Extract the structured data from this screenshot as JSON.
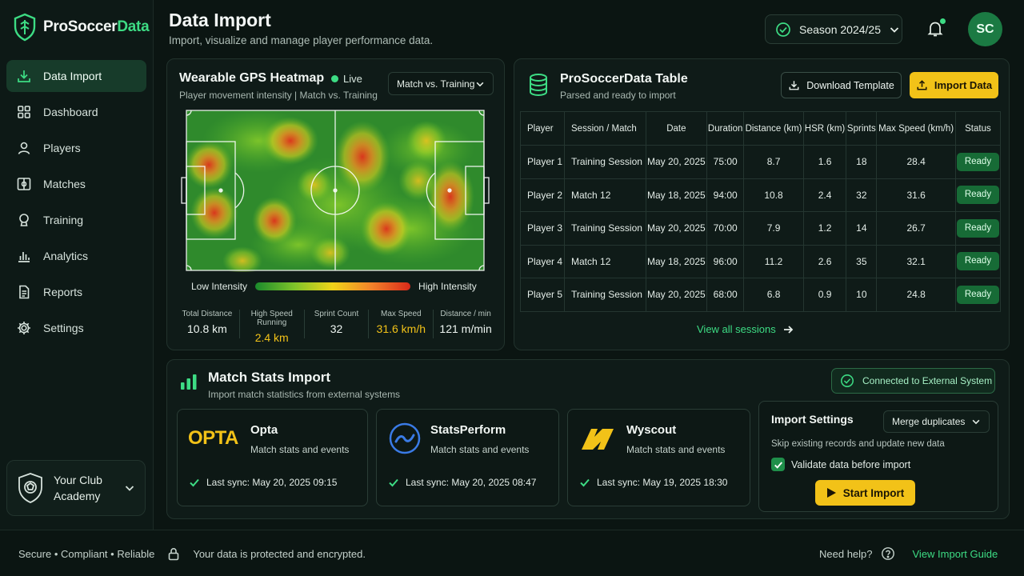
{
  "brand": {
    "name_main": "ProSoccer",
    "name_accent": "Data"
  },
  "sidebar": {
    "items": [
      {
        "label": "Data Import",
        "icon": "download-icon"
      },
      {
        "label": "Dashboard",
        "icon": "grid-icon"
      },
      {
        "label": "Players",
        "icon": "user-icon"
      },
      {
        "label": "Matches",
        "icon": "pitch-icon"
      },
      {
        "label": "Training",
        "icon": "whistle-icon"
      },
      {
        "label": "Analytics",
        "icon": "bar-chart-icon"
      },
      {
        "label": "Reports",
        "icon": "document-icon"
      },
      {
        "label": "Settings",
        "icon": "gear-icon"
      }
    ],
    "club_name": "Your Club Academy"
  },
  "header": {
    "title": "Data Import",
    "subtitle": "Import, visualize and manage player performance data.",
    "season": "Season 2024/25",
    "avatar_initials": "SC"
  },
  "heatmap": {
    "title": "Wearable GPS Heatmap",
    "live_label": "Live",
    "subtitle": "Player movement intensity | Match vs. Training",
    "filter": "Match vs. Training",
    "legend_low": "Low Intensity",
    "legend_high": "High Intensity",
    "stats": [
      {
        "label": "Total Distance",
        "value": "10.8 km"
      },
      {
        "label": "High Speed Running",
        "value": "2.4 km"
      },
      {
        "label": "Sprint Count",
        "value": "32"
      },
      {
        "label": "Max Speed",
        "value": "31.6 km/h"
      },
      {
        "label": "Distance / min",
        "value": "121 m/min"
      }
    ]
  },
  "table": {
    "title": "ProSoccerData Table",
    "subtitle": "Parsed and ready to import",
    "download_label": "Download Template",
    "import_label": "Import Data",
    "headers": [
      "Player",
      "Session / Match",
      "Date",
      "Duration",
      "Distance (km)",
      "HSR (km)",
      "Sprints",
      "Max Speed (km/h)",
      "Status"
    ],
    "rows": [
      [
        "Player 1",
        "Training Session",
        "May 20, 2025",
        "75:00",
        "8.7",
        "1.6",
        "18",
        "28.4",
        "Ready"
      ],
      [
        "Player 2",
        "Match 12",
        "May 18, 2025",
        "94:00",
        "10.8",
        "2.4",
        "32",
        "31.6",
        "Ready"
      ],
      [
        "Player 3",
        "Training Session",
        "May 20, 2025",
        "70:00",
        "7.9",
        "1.2",
        "14",
        "26.7",
        "Ready"
      ],
      [
        "Player 4",
        "Match 12",
        "May 18, 2025",
        "96:00",
        "11.2",
        "2.6",
        "35",
        "32.1",
        "Ready"
      ],
      [
        "Player 5",
        "Training Session",
        "May 20, 2025",
        "68:00",
        "6.8",
        "0.9",
        "10",
        "24.8",
        "Ready"
      ]
    ],
    "view_all": "View all sessions"
  },
  "match_stats": {
    "title": "Match Stats Import",
    "subtitle": "Import match statistics from external systems",
    "connected": "Connected to External System",
    "providers": [
      {
        "logo": "OPTA",
        "name": "Opta",
        "desc": "Match stats and events",
        "sync": "Last sync: May 20, 2025 09:15"
      },
      {
        "logo": "statsperform-logo",
        "name": "StatsPerform",
        "desc": "Match stats and events",
        "sync": "Last sync: May 20, 2025 08:47"
      },
      {
        "logo": "wyscout-logo",
        "name": "Wyscout",
        "desc": "Match stats and events",
        "sync": "Last sync: May 19, 2025 18:30"
      }
    ],
    "settings": {
      "title": "Import Settings",
      "merge": "Merge duplicates",
      "note": "Skip existing records and update new data",
      "validate": "Validate data before import",
      "start": "Start Import"
    }
  },
  "footer": {
    "left": [
      "Secure",
      "•",
      "Compliant",
      "•",
      "Reliable"
    ],
    "protected": "Your data is protected and encrypted.",
    "help": "Need help?",
    "guide": "View Import Guide"
  },
  "colors": {
    "accent": "#3ddc84",
    "yellow": "#f2c218",
    "bg": "#0b1512"
  }
}
